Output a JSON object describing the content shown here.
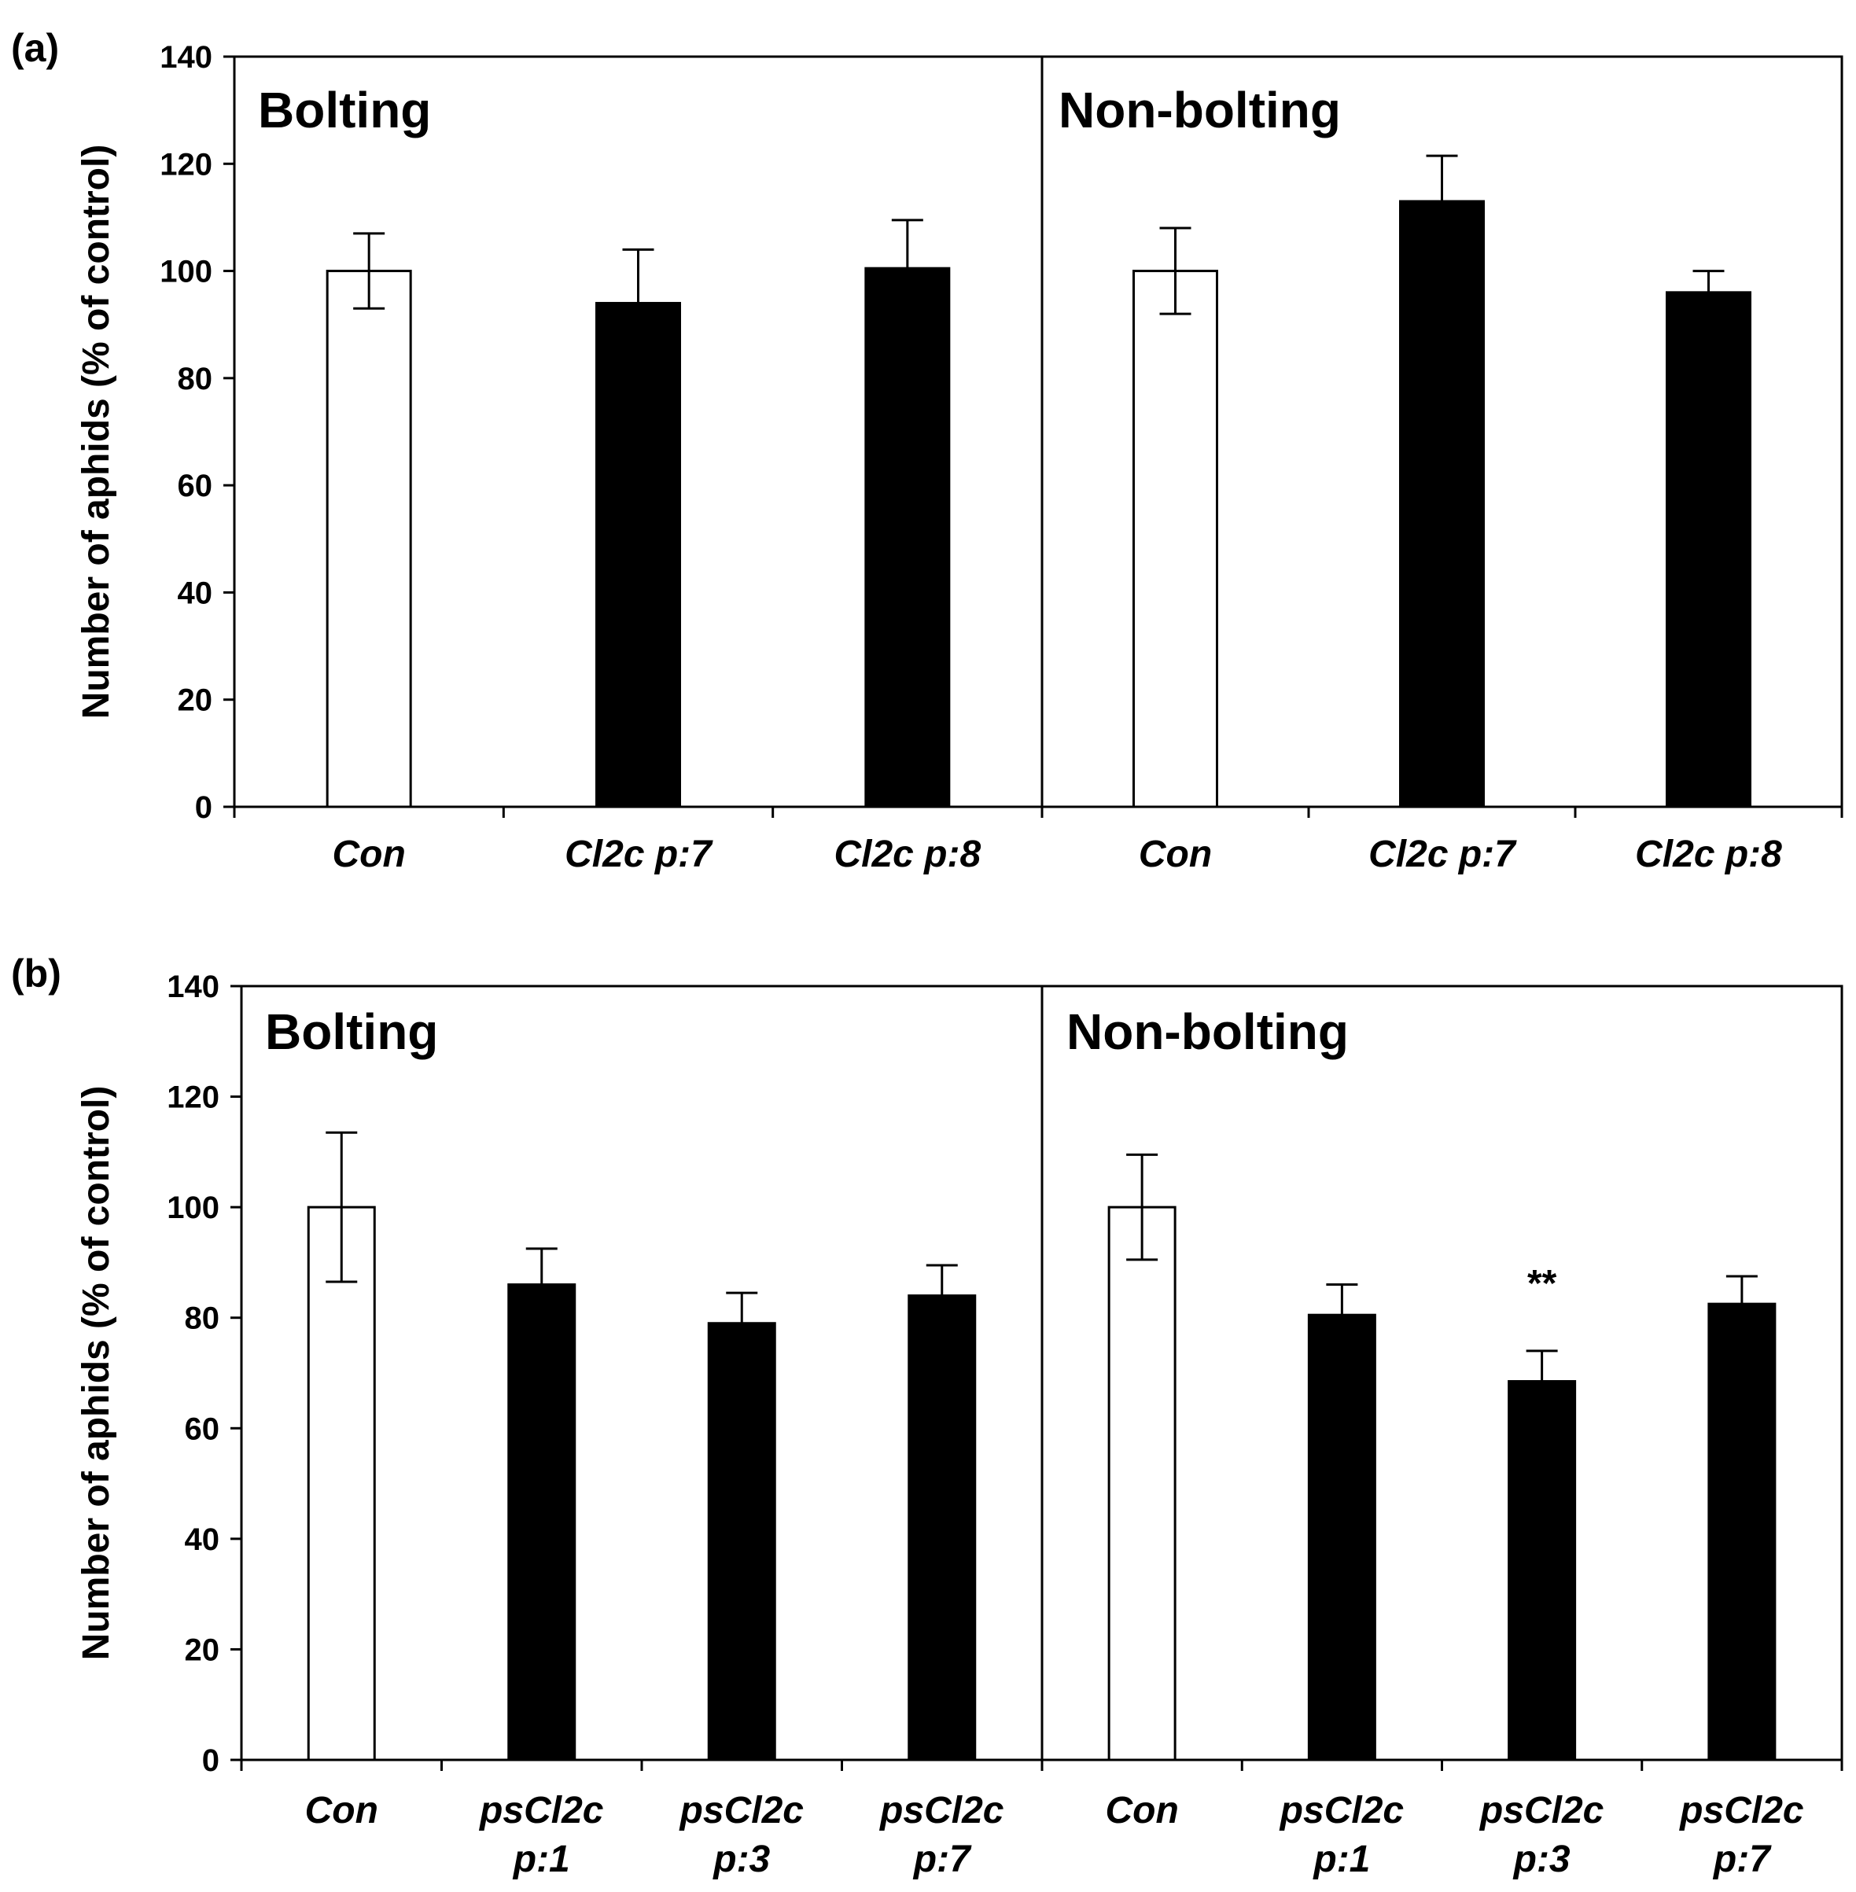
{
  "chart_data": [
    {
      "type": "bar",
      "panel_label": "(a)",
      "ylabel": "Number of aphids (% of control)",
      "ylim": [
        0,
        140
      ],
      "yticks": [
        0,
        20,
        40,
        60,
        80,
        100,
        120,
        140
      ],
      "groups": [
        {
          "name": "Bolting",
          "categories": [
            [
              "Con"
            ],
            [
              "Cl2c p:7"
            ],
            [
              "Cl2c p:8"
            ]
          ],
          "values": [
            100,
            94,
            100.5
          ],
          "errors": [
            7,
            10,
            9
          ],
          "fills": [
            "#ffffff",
            "#000000",
            "#000000"
          ],
          "annotations": [
            "",
            "",
            ""
          ]
        },
        {
          "name": "Non-bolting",
          "categories": [
            [
              "Con"
            ],
            [
              "Cl2c p:7"
            ],
            [
              "Cl2c p:8"
            ]
          ],
          "values": [
            100,
            113,
            96
          ],
          "errors": [
            8,
            8.5,
            4
          ],
          "fills": [
            "#ffffff",
            "#000000",
            "#000000"
          ],
          "annotations": [
            "",
            "",
            ""
          ]
        }
      ]
    },
    {
      "type": "bar",
      "panel_label": "(b)",
      "ylabel": "Number of aphids (% of control)",
      "ylim": [
        0,
        140
      ],
      "yticks": [
        0,
        20,
        40,
        60,
        80,
        100,
        120,
        140
      ],
      "groups": [
        {
          "name": "Bolting",
          "categories": [
            [
              "Con"
            ],
            [
              "psCl2c",
              "p:1"
            ],
            [
              "psCl2c",
              "p:3"
            ],
            [
              "psCl2c",
              "p:7"
            ]
          ],
          "values": [
            100,
            86,
            79,
            84
          ],
          "errors": [
            13.5,
            6.5,
            5.5,
            5.5
          ],
          "fills": [
            "#ffffff",
            "#000000",
            "#000000",
            "#000000"
          ],
          "annotations": [
            "",
            "",
            "",
            ""
          ]
        },
        {
          "name": "Non-bolting",
          "categories": [
            [
              "Con"
            ],
            [
              "psCl2c",
              "p:1"
            ],
            [
              "psCl2c",
              "p:3"
            ],
            [
              "psCl2c",
              "p:7"
            ]
          ],
          "values": [
            100,
            80.5,
            68.5,
            82.5
          ],
          "errors": [
            9.5,
            5.5,
            5.5,
            5
          ],
          "fills": [
            "#ffffff",
            "#000000",
            "#000000",
            "#000000"
          ],
          "annotations": [
            "",
            "",
            "**",
            ""
          ]
        }
      ]
    }
  ]
}
